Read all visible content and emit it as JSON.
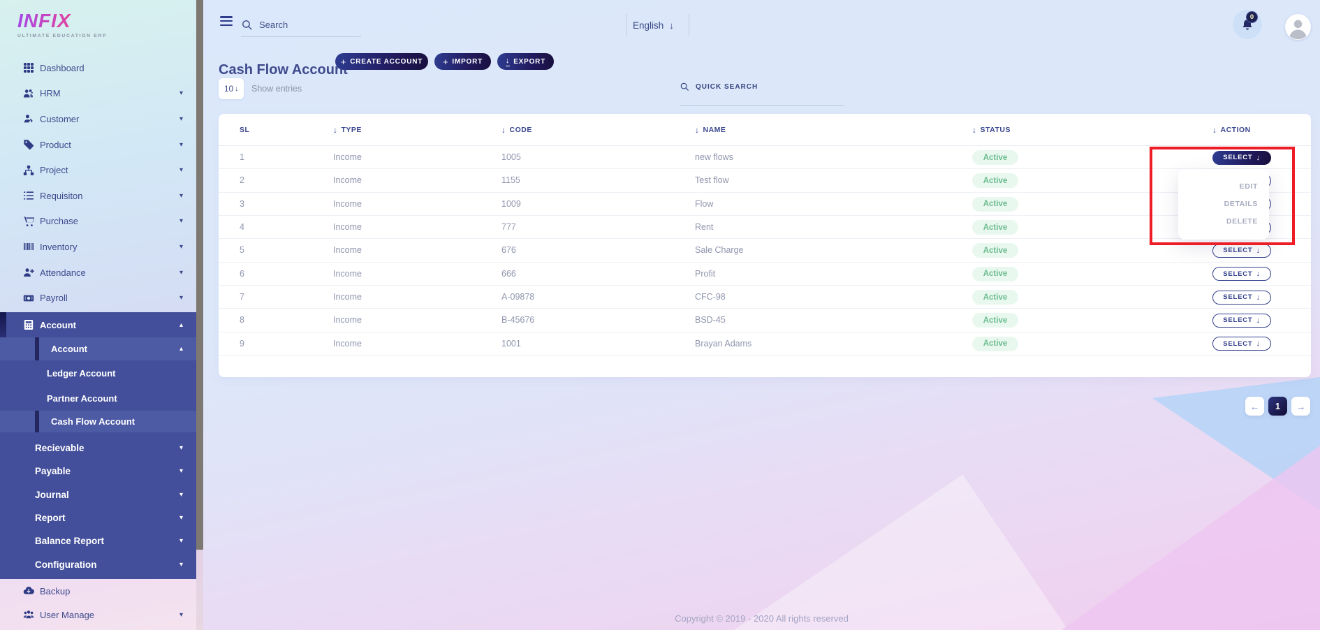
{
  "brand": {
    "name": "INFIX",
    "tagline": "ULTIMATE EDUCATION ERP"
  },
  "topbar": {
    "search_placeholder": "Search",
    "language_label": "English",
    "notification_count": "0"
  },
  "sidebar": {
    "top_items": [
      {
        "label": "Dashboard",
        "icon": "dashboard-icon",
        "has_caret": false
      },
      {
        "label": "HRM",
        "icon": "hrm-icon",
        "has_caret": true
      },
      {
        "label": "Customer",
        "icon": "customer-icon",
        "has_caret": true
      },
      {
        "label": "Product",
        "icon": "product-icon",
        "has_caret": true
      },
      {
        "label": "Project",
        "icon": "project-icon",
        "has_caret": true
      },
      {
        "label": "Requisiton",
        "icon": "requisition-icon",
        "has_caret": true
      },
      {
        "label": "Purchase",
        "icon": "purchase-icon",
        "has_caret": true
      },
      {
        "label": "Inventory",
        "icon": "inventory-icon",
        "has_caret": true
      },
      {
        "label": "Attendance",
        "icon": "attendance-icon",
        "has_caret": true
      },
      {
        "label": "Payroll",
        "icon": "payroll-icon",
        "has_caret": true
      }
    ],
    "account_parent": {
      "label": "Account",
      "icon": "account-icon",
      "caret": "up"
    },
    "account_sub_parent": {
      "label": "Account",
      "caret": "up"
    },
    "account_children": [
      {
        "label": "Ledger Account",
        "active": false
      },
      {
        "label": "Partner Account",
        "active": false
      },
      {
        "label": "Cash Flow Account",
        "active": true
      }
    ],
    "dark_groups": [
      {
        "label": "Recievable"
      },
      {
        "label": "Payable"
      },
      {
        "label": "Journal"
      },
      {
        "label": "Report"
      },
      {
        "label": "Balance Report"
      },
      {
        "label": "Configuration"
      }
    ],
    "bottom_items": [
      {
        "label": "Backup",
        "icon": "backup-icon",
        "has_caret": false
      },
      {
        "label": "User Manage",
        "icon": "user-manage-icon",
        "has_caret": true
      }
    ]
  },
  "page": {
    "title": "Cash Flow Account",
    "create_button": "CREATE ACCOUNT",
    "import_button": "IMPORT",
    "export_button": "EXPORT",
    "entries_per_page": "10",
    "entries_label": "Show entries",
    "quick_search_placeholder": "QUICK SEARCH"
  },
  "table": {
    "columns": [
      {
        "label": "SL",
        "sortable": false
      },
      {
        "label": "TYPE",
        "sortable": true
      },
      {
        "label": "CODE",
        "sortable": true
      },
      {
        "label": "NAME",
        "sortable": true
      },
      {
        "label": "STATUS",
        "sortable": true
      },
      {
        "label": "ACTION",
        "sortable": true
      }
    ],
    "rows": [
      {
        "sl": "1",
        "type": "Income",
        "code": "1005",
        "name": "new flows",
        "status": "Active",
        "action": "SELECT"
      },
      {
        "sl": "2",
        "type": "Income",
        "code": "1155",
        "name": "Test flow",
        "status": "Active",
        "action": "SELECT"
      },
      {
        "sl": "3",
        "type": "Income",
        "code": "1009",
        "name": "Flow",
        "status": "Active",
        "action": "SELECT"
      },
      {
        "sl": "4",
        "type": "Income",
        "code": "777",
        "name": "Rent",
        "status": "Active",
        "action": "SELECT"
      },
      {
        "sl": "5",
        "type": "Income",
        "code": "676",
        "name": "Sale Charge",
        "status": "Active",
        "action": "SELECT"
      },
      {
        "sl": "6",
        "type": "Income",
        "code": "666",
        "name": "Profit",
        "status": "Active",
        "action": "SELECT"
      },
      {
        "sl": "7",
        "type": "Income",
        "code": "A-09878",
        "name": "CFC-98",
        "status": "Active",
        "action": "SELECT"
      },
      {
        "sl": "8",
        "type": "Income",
        "code": "B-45676",
        "name": "BSD-45",
        "status": "Active",
        "action": "SELECT"
      },
      {
        "sl": "9",
        "type": "Income",
        "code": "1001",
        "name": "Brayan Adams",
        "status": "Active",
        "action": "SELECT"
      }
    ],
    "action_menu": {
      "open_row_sl": "1",
      "items": [
        "EDIT",
        "DETAILS",
        "DELETE"
      ]
    }
  },
  "pagination": {
    "current_page": "1"
  },
  "footer": {
    "copyright": "Copyright © 2019 - 2020 All rights reserved"
  },
  "colors": {
    "accent": "#3b4a86",
    "sidebar_dark": "#434f9a",
    "button_gradient_from": "#2e3c90",
    "button_gradient_to": "#190f3e",
    "badge_bg": "#e9f8ef",
    "badge_text": "#6abb8e",
    "annotation_red": "#ee1d25"
  }
}
